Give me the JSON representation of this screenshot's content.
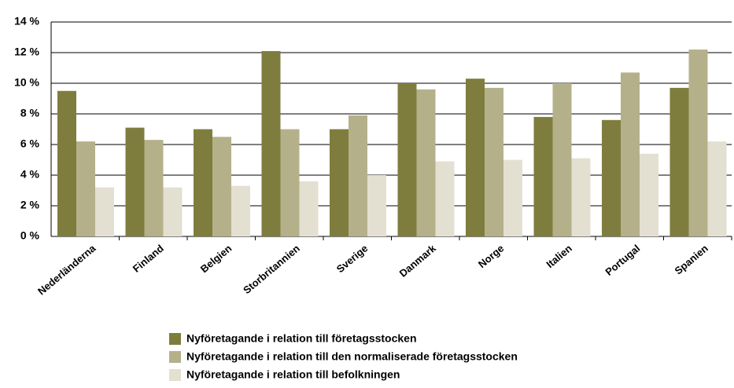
{
  "chart_data": {
    "type": "bar",
    "categories": [
      "Nederländerna",
      "Finland",
      "Belgien",
      "Storbritannien",
      "Sverige",
      "Danmark",
      "Norge",
      "Italien",
      "Portugal",
      "Spanien"
    ],
    "series": [
      {
        "name": "Nyföretagande i relation till företagsstocken",
        "color": "#7f7d3e",
        "values": [
          9.5,
          7.1,
          7.0,
          12.1,
          7.0,
          10.0,
          10.3,
          7.8,
          7.6,
          9.7
        ]
      },
      {
        "name": "Nyföretagande i relation till den normaliserade företagsstocken",
        "color": "#b4b18a",
        "values": [
          6.2,
          6.3,
          6.5,
          7.0,
          7.9,
          9.6,
          9.7,
          10.0,
          10.7,
          12.2
        ]
      },
      {
        "name": "Nyföretagande i relation till befolkningen",
        "color": "#e3e0d1",
        "values": [
          3.2,
          3.2,
          3.3,
          3.6,
          4.0,
          4.9,
          5.0,
          5.1,
          5.4,
          6.2
        ]
      }
    ],
    "ylim": [
      0,
      14
    ],
    "yticks": [
      {
        "value": 0,
        "label": "0 %"
      },
      {
        "value": 2,
        "label": "2 %"
      },
      {
        "value": 4,
        "label": "4 %"
      },
      {
        "value": 6,
        "label": "6 %"
      },
      {
        "value": 8,
        "label": "8 %"
      },
      {
        "value": 10,
        "label": "10 %"
      },
      {
        "value": 12,
        "label": "12 %"
      },
      {
        "value": 14,
        "label": "14 %"
      }
    ],
    "grid": true
  }
}
